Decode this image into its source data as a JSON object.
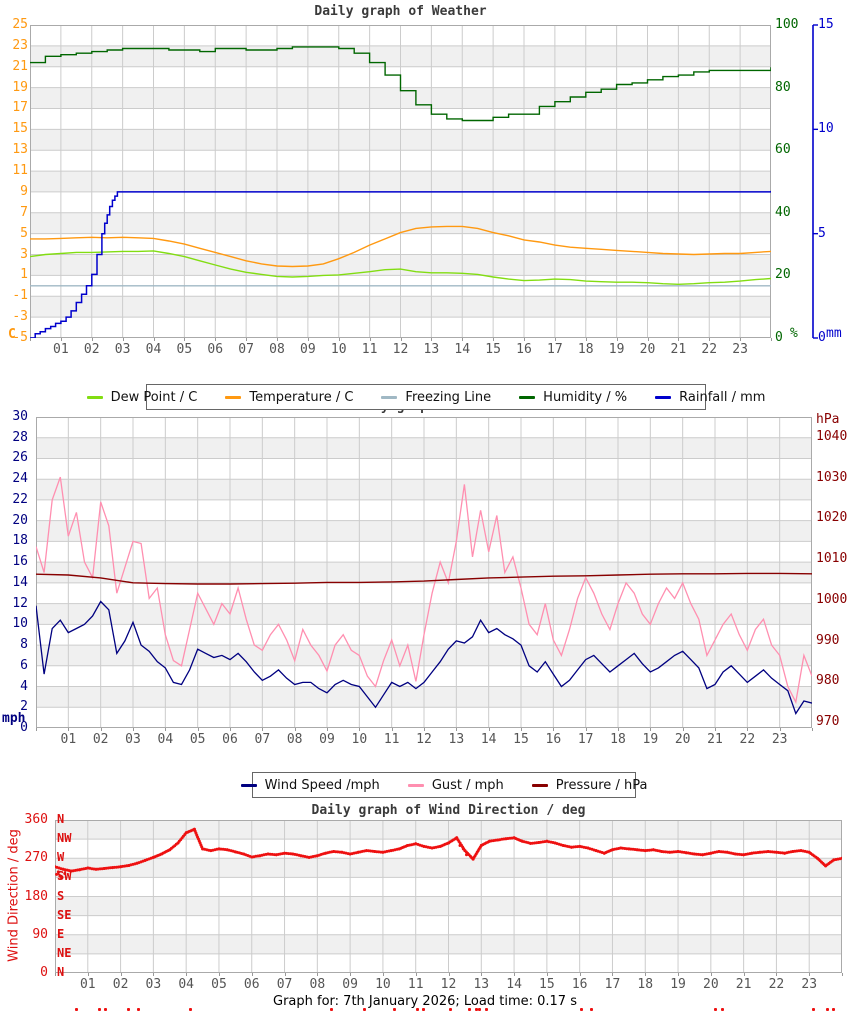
{
  "page": {
    "background": "#ffffff"
  },
  "footer": "Graph for: 7th January 2026; Load time: 0.17 s",
  "colors": {
    "band_gray": "#f0f0f0",
    "grid": "#cccccc",
    "plot_border": "#aaaaaa",
    "x_label": "#555555",
    "title": "#3a3a3a",
    "dew_point": "#82dd12",
    "temperature": "#ff9911",
    "freezing_line": "#a0b8c4",
    "humidity": "#006600",
    "rainfall": "#0000cc",
    "wind_speed": "#000080",
    "gust": "#ff8fb0",
    "pressure": "#880000",
    "wind_direction": "#ee1111",
    "deg_axis_text": "#dd1111"
  },
  "x_axis": {
    "hour_labels": [
      "01",
      "02",
      "03",
      "04",
      "05",
      "06",
      "07",
      "08",
      "09",
      "10",
      "11",
      "12",
      "13",
      "14",
      "15",
      "16",
      "17",
      "18",
      "19",
      "20",
      "21",
      "22",
      "23"
    ],
    "hours_total": 24
  },
  "chart_data": [
    {
      "type": "line",
      "title": "Daily graph of Weather",
      "y_left": {
        "unit": "C",
        "color": "#ff9911",
        "range": [
          -5,
          25
        ],
        "ticks": [
          25,
          23,
          21,
          19,
          17,
          15,
          13,
          11,
          9,
          7,
          5,
          3,
          1,
          -1,
          -3,
          -5
        ]
      },
      "y_right_humidity": {
        "unit": "%",
        "color": "#006600",
        "range": [
          0,
          100
        ],
        "ticks": [
          100,
          80,
          60,
          40,
          20,
          0
        ]
      },
      "y_right_rain": {
        "unit": "mm",
        "color": "#0000cc",
        "range": [
          0,
          15
        ],
        "ticks": [
          15,
          10,
          5,
          0
        ]
      },
      "legend": [
        {
          "label": "Dew Point / C",
          "color": "#82dd12"
        },
        {
          "label": "Temperature / C",
          "color": "#ff9911"
        },
        {
          "label": "Freezing Line",
          "color": "#a0b8c4"
        },
        {
          "label": "Humidity / %",
          "color": "#006600"
        },
        {
          "label": "Rainfall / mm",
          "color": "#0000cc"
        }
      ],
      "series": {
        "dew_point_c": {
          "interval_h": 0.5,
          "values": [
            2.8,
            3.0,
            3.1,
            3.2,
            3.2,
            3.25,
            3.3,
            3.3,
            3.35,
            3.1,
            2.8,
            2.4,
            2.0,
            1.6,
            1.3,
            1.1,
            0.9,
            0.85,
            0.9,
            1.0,
            1.05,
            1.2,
            1.35,
            1.55,
            1.6,
            1.35,
            1.25,
            1.25,
            1.2,
            1.1,
            0.85,
            0.65,
            0.5,
            0.55,
            0.65,
            0.6,
            0.45,
            0.4,
            0.35,
            0.35,
            0.3,
            0.2,
            0.15,
            0.2,
            0.3,
            0.35,
            0.45,
            0.6,
            0.7
          ]
        },
        "temperature_c": {
          "interval_h": 0.5,
          "values": [
            4.5,
            4.5,
            4.55,
            4.6,
            4.65,
            4.6,
            4.65,
            4.6,
            4.55,
            4.3,
            4.0,
            3.6,
            3.2,
            2.8,
            2.4,
            2.1,
            1.9,
            1.85,
            1.9,
            2.1,
            2.6,
            3.2,
            3.9,
            4.5,
            5.1,
            5.5,
            5.65,
            5.7,
            5.7,
            5.5,
            5.1,
            4.8,
            4.4,
            4.2,
            3.9,
            3.7,
            3.6,
            3.5,
            3.4,
            3.3,
            3.2,
            3.1,
            3.05,
            3.0,
            3.05,
            3.1,
            3.1,
            3.2,
            3.3
          ]
        },
        "freezing_line_c": {
          "value": 0
        },
        "humidity_pct": {
          "interval_h": 0.5,
          "stairs": true,
          "values": [
            88,
            90,
            90.5,
            91,
            91.5,
            92,
            92.5,
            92.5,
            92.5,
            92,
            92,
            91.5,
            92.5,
            92.5,
            92,
            92,
            92.5,
            93,
            93,
            93,
            92.5,
            91,
            88,
            84,
            79,
            74.5,
            71.5,
            70,
            69.5,
            69.5,
            70.5,
            71.5,
            71.5,
            74,
            75.5,
            77,
            78.5,
            79.5,
            81,
            81.5,
            82.5,
            83.5,
            84,
            85,
            85.5,
            85.5,
            85.5,
            85.5,
            86.5
          ]
        },
        "rainfall_mm": {
          "stairs": true,
          "points": [
            [
              0,
              0
            ],
            [
              0.17,
              0.2
            ],
            [
              0.33,
              0.3
            ],
            [
              0.5,
              0.45
            ],
            [
              0.67,
              0.55
            ],
            [
              0.83,
              0.7
            ],
            [
              1.0,
              0.8
            ],
            [
              1.17,
              1.0
            ],
            [
              1.33,
              1.3
            ],
            [
              1.5,
              1.7
            ],
            [
              1.67,
              2.1
            ],
            [
              1.83,
              2.5
            ],
            [
              2.0,
              3.05
            ],
            [
              2.17,
              4.0
            ],
            [
              2.33,
              5.0
            ],
            [
              2.42,
              5.5
            ],
            [
              2.5,
              5.9
            ],
            [
              2.58,
              6.3
            ],
            [
              2.67,
              6.6
            ],
            [
              2.75,
              6.8
            ],
            [
              2.83,
              7.0
            ],
            [
              24,
              7.05
            ]
          ]
        }
      }
    },
    {
      "type": "line",
      "title": "Daily graph of Wind",
      "y_left": {
        "unit": "mph",
        "color": "#000080",
        "range": [
          0,
          30
        ],
        "ticks": [
          30,
          28,
          26,
          24,
          22,
          20,
          18,
          16,
          14,
          12,
          10,
          8,
          6,
          4,
          2,
          0
        ]
      },
      "y_right": {
        "unit": "hPa",
        "color": "#880000",
        "range": [
          970,
          1040
        ],
        "ticks": [
          1040,
          1030,
          1020,
          1010,
          1000,
          990,
          980,
          970
        ]
      },
      "legend": [
        {
          "label": "Wind Speed /mph",
          "color": "#000080"
        },
        {
          "label": "Gust / mph",
          "color": "#ff8fb0"
        },
        {
          "label": "Pressure / hPa",
          "color": "#880000"
        }
      ],
      "series": {
        "wind_speed_mph": {
          "interval_h": 0.25,
          "values": [
            11.8,
            5.2,
            9.6,
            10.4,
            9.2,
            9.6,
            10.0,
            10.8,
            12.2,
            11.4,
            7.2,
            8.4,
            10.2,
            8.0,
            7.4,
            6.4,
            5.8,
            4.4,
            4.2,
            5.6,
            7.6,
            7.2,
            6.8,
            7.0,
            6.6,
            7.2,
            6.4,
            5.4,
            4.6,
            5.0,
            5.6,
            4.8,
            4.2,
            4.4,
            4.4,
            3.8,
            3.4,
            4.2,
            4.6,
            4.2,
            4.0,
            3.0,
            2.0,
            3.2,
            4.4,
            4.0,
            4.4,
            3.8,
            4.4,
            5.4,
            6.4,
            7.6,
            8.4,
            8.2,
            8.8,
            10.4,
            9.2,
            9.6,
            9.0,
            8.6,
            8.0,
            6.0,
            5.4,
            6.4,
            5.2,
            4.0,
            4.6,
            5.6,
            6.6,
            7.0,
            6.2,
            5.4,
            6.0,
            6.6,
            7.2,
            6.2,
            5.4,
            5.8,
            6.4,
            7.0,
            7.4,
            6.6,
            5.8,
            3.8,
            4.2,
            5.4,
            6.0,
            5.2,
            4.4,
            5.0,
            5.6,
            4.8,
            4.2,
            3.6,
            1.4,
            2.6,
            2.4
          ]
        },
        "gust_mph": {
          "interval_h": 0.25,
          "values": [
            17.5,
            15.0,
            22.0,
            24.2,
            18.5,
            20.8,
            16.0,
            14.5,
            21.8,
            19.5,
            13.0,
            15.5,
            18.0,
            17.8,
            12.5,
            13.5,
            9.0,
            6.5,
            6.0,
            9.5,
            13.0,
            11.5,
            10.0,
            12.0,
            11.0,
            13.5,
            10.5,
            8.0,
            7.5,
            9.0,
            10.0,
            8.5,
            6.5,
            9.5,
            8.0,
            7.0,
            5.5,
            8.0,
            9.0,
            7.5,
            7.0,
            5.0,
            4.0,
            6.5,
            8.5,
            6.0,
            8.0,
            4.5,
            9.0,
            13.0,
            16.0,
            14.0,
            18.0,
            23.5,
            16.5,
            21.0,
            17.0,
            20.5,
            15.0,
            16.5,
            13.5,
            10.0,
            9.0,
            12.0,
            8.5,
            7.0,
            9.5,
            12.5,
            14.5,
            13.0,
            11.0,
            9.5,
            12.0,
            14.0,
            13.0,
            11.0,
            10.0,
            12.0,
            13.5,
            12.5,
            14.0,
            12.0,
            10.5,
            7.0,
            8.5,
            10.0,
            11.0,
            9.0,
            7.5,
            9.5,
            10.5,
            8.0,
            7.0,
            4.0,
            2.5,
            7.0,
            5.0
          ]
        },
        "pressure_hpa": {
          "interval_h": 1,
          "values": [
            1006.3,
            1006.1,
            1005.4,
            1004.2,
            1004.0,
            1003.9,
            1003.9,
            1004.0,
            1004.1,
            1004.3,
            1004.3,
            1004.4,
            1004.6,
            1005.0,
            1005.4,
            1005.6,
            1005.8,
            1005.9,
            1006.1,
            1006.3,
            1006.4,
            1006.4,
            1006.5,
            1006.5,
            1006.4
          ]
        }
      }
    },
    {
      "type": "scatter",
      "title": "Daily graph of Wind Direction / deg",
      "y_left": {
        "label": "Wind Direction / deg",
        "unit": "deg",
        "color": "#dd1111",
        "range": [
          0,
          360
        ],
        "ticks": [
          360,
          270,
          180,
          90,
          0
        ],
        "compass": [
          {
            "label": "N",
            "deg": 360
          },
          {
            "label": "NW",
            "deg": 315
          },
          {
            "label": "W",
            "deg": 270
          },
          {
            "label": "SW",
            "deg": 225
          },
          {
            "label": "S",
            "deg": 180
          },
          {
            "label": "SE",
            "deg": 135
          },
          {
            "label": "E",
            "deg": 90
          },
          {
            "label": "NE",
            "deg": 45
          },
          {
            "label": "N",
            "deg": 0
          }
        ]
      },
      "series": {
        "wind_direction_deg": {
          "interval_h": 0.25,
          "values": [
            250,
            244,
            240,
            243,
            247,
            244,
            246,
            248,
            250,
            253,
            258,
            265,
            272,
            280,
            290,
            306,
            330,
            338,
            292,
            288,
            292,
            290,
            285,
            280,
            273,
            276,
            280,
            278,
            282,
            280,
            276,
            272,
            276,
            282,
            286,
            284,
            280,
            284,
            288,
            286,
            284,
            288,
            292,
            300,
            304,
            298,
            294,
            298,
            306,
            318,
            288,
            268,
            300,
            310,
            313,
            316,
            318,
            310,
            305,
            307,
            310,
            306,
            300,
            296,
            298,
            294,
            288,
            282,
            290,
            294,
            292,
            290,
            288,
            290,
            286,
            284,
            286,
            283,
            280,
            278,
            282,
            286,
            284,
            280,
            278,
            282,
            284,
            286,
            284,
            282,
            286,
            288,
            284,
            270,
            252,
            266,
            270
          ]
        },
        "extra_scatter": {
          "points": [
            [
              0.05,
              232
            ],
            [
              0.1,
              238
            ],
            [
              0.15,
              228
            ],
            [
              0.3,
              234
            ],
            [
              0.2,
              224
            ],
            [
              12.35,
              300
            ],
            [
              12.45,
              292
            ],
            [
              12.55,
              278
            ]
          ]
        }
      },
      "below_axis_dot_hours": [
        0.6,
        1.3,
        1.5,
        2.2,
        2.5,
        4.1,
        8.4,
        9.4,
        10.3,
        11.0,
        11.2,
        12.0,
        12.6,
        12.8,
        12.9,
        13.1,
        16.0,
        16.3,
        20.1,
        20.3,
        23.1,
        23.5,
        23.7
      ]
    }
  ]
}
